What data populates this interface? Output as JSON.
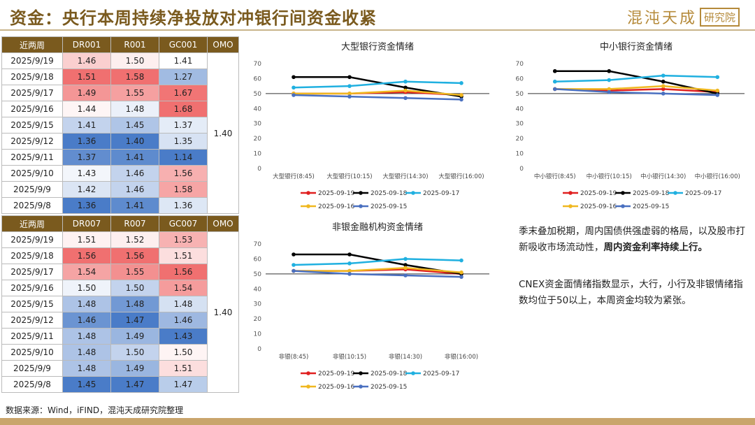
{
  "title": "资金：央行本周持续净投放对冲银行间资金收紧",
  "logo": {
    "brand": "混沌天成",
    "seal": "研究院"
  },
  "colors": {
    "header_bg": "#7a5a1e",
    "red": "#f07070",
    "blue": "#4a7cc8",
    "accent": "#7a5a1e"
  },
  "table1": {
    "headers": [
      "近两周",
      "DR001",
      "R001",
      "GC001",
      "OMO"
    ],
    "omo": "1.40",
    "rows": [
      {
        "date": "2025/9/19",
        "a": "1.46",
        "b": "1.50",
        "c": "1.41"
      },
      {
        "date": "2025/9/18",
        "a": "1.51",
        "b": "1.58",
        "c": "1.27"
      },
      {
        "date": "2025/9/17",
        "a": "1.49",
        "b": "1.55",
        "c": "1.67"
      },
      {
        "date": "2025/9/16",
        "a": "1.44",
        "b": "1.48",
        "c": "1.68"
      },
      {
        "date": "2025/9/15",
        "a": "1.41",
        "b": "1.45",
        "c": "1.37"
      },
      {
        "date": "2025/9/12",
        "a": "1.36",
        "b": "1.40",
        "c": "1.35"
      },
      {
        "date": "2025/9/11",
        "a": "1.37",
        "b": "1.41",
        "c": "1.14"
      },
      {
        "date": "2025/9/10",
        "a": "1.43",
        "b": "1.46",
        "c": "1.56"
      },
      {
        "date": "2025/9/9",
        "a": "1.42",
        "b": "1.46",
        "c": "1.58"
      },
      {
        "date": "2025/9/8",
        "a": "1.36",
        "b": "1.41",
        "c": "1.36"
      }
    ]
  },
  "table2": {
    "headers": [
      "近两周",
      "DR007",
      "R007",
      "GC007",
      "OMO"
    ],
    "omo": "1.40",
    "rows": [
      {
        "date": "2025/9/19",
        "a": "1.51",
        "b": "1.52",
        "c": "1.53"
      },
      {
        "date": "2025/9/18",
        "a": "1.56",
        "b": "1.56",
        "c": "1.51"
      },
      {
        "date": "2025/9/17",
        "a": "1.54",
        "b": "1.55",
        "c": "1.56"
      },
      {
        "date": "2025/9/16",
        "a": "1.50",
        "b": "1.50",
        "c": "1.54"
      },
      {
        "date": "2025/9/15",
        "a": "1.48",
        "b": "1.48",
        "c": "1.48"
      },
      {
        "date": "2025/9/12",
        "a": "1.46",
        "b": "1.47",
        "c": "1.46"
      },
      {
        "date": "2025/9/11",
        "a": "1.48",
        "b": "1.49",
        "c": "1.43"
      },
      {
        "date": "2025/9/10",
        "a": "1.48",
        "b": "1.50",
        "c": "1.50"
      },
      {
        "date": "2025/9/9",
        "a": "1.48",
        "b": "1.49",
        "c": "1.51"
      },
      {
        "date": "2025/9/8",
        "a": "1.45",
        "b": "1.47",
        "c": "1.47"
      }
    ]
  },
  "chart_data": [
    {
      "type": "line",
      "title": "大型银行资金情绪",
      "categories": [
        "大型银行(8:45)",
        "大型银行(10:15)",
        "大型银行(14:30)",
        "大型银行(16:00)"
      ],
      "ylim": [
        0,
        70
      ],
      "yticks": [
        0,
        10,
        20,
        30,
        40,
        50,
        60,
        70
      ],
      "reference_line": 50,
      "series": [
        {
          "name": "2025-09-19",
          "color": "#e02020",
          "values": [
            50,
            50,
            51,
            49
          ]
        },
        {
          "name": "2025-09-18",
          "color": "#000000",
          "values": [
            61,
            61,
            54,
            48
          ]
        },
        {
          "name": "2025-09-17",
          "color": "#20b0e0",
          "values": [
            54,
            55,
            58,
            57
          ]
        },
        {
          "name": "2025-09-16",
          "color": "#f0b820",
          "values": [
            50,
            50,
            52,
            49
          ]
        },
        {
          "name": "2025-09-15",
          "color": "#4a70c0",
          "values": [
            49,
            48,
            47,
            46
          ]
        }
      ]
    },
    {
      "type": "line",
      "title": "中小银行资金情绪",
      "categories": [
        "中小银行(8:45)",
        "中小银行(10:15)",
        "中小银行(14:30)",
        "中小银行(16:00)"
      ],
      "ylim": [
        0,
        70
      ],
      "yticks": [
        0,
        10,
        20,
        30,
        40,
        50,
        60,
        70
      ],
      "reference_line": 50,
      "series": [
        {
          "name": "2025-09-19",
          "color": "#e02020",
          "values": [
            53,
            52,
            53,
            51
          ]
        },
        {
          "name": "2025-09-18",
          "color": "#000000",
          "values": [
            65,
            65,
            58,
            50
          ]
        },
        {
          "name": "2025-09-17",
          "color": "#20b0e0",
          "values": [
            58,
            59,
            62,
            61
          ]
        },
        {
          "name": "2025-09-16",
          "color": "#f0b820",
          "values": [
            53,
            53,
            55,
            52
          ]
        },
        {
          "name": "2025-09-15",
          "color": "#4a70c0",
          "values": [
            53,
            51,
            50,
            49
          ]
        }
      ]
    },
    {
      "type": "line",
      "title": "非银金融机构资金情绪",
      "categories": [
        "非银(8:45)",
        "非银(10:15)",
        "非银(14:30)",
        "非银(16:00)"
      ],
      "ylim": [
        0,
        70
      ],
      "yticks": [
        0,
        10,
        20,
        30,
        40,
        50,
        60,
        70
      ],
      "reference_line": 50,
      "series": [
        {
          "name": "2025-09-19",
          "color": "#e02020",
          "values": [
            52,
            52,
            53,
            50
          ]
        },
        {
          "name": "2025-09-18",
          "color": "#000000",
          "values": [
            63,
            63,
            56,
            50
          ]
        },
        {
          "name": "2025-09-17",
          "color": "#20b0e0",
          "values": [
            56,
            57,
            60,
            59
          ]
        },
        {
          "name": "2025-09-16",
          "color": "#f0b820",
          "values": [
            52,
            52,
            54,
            51
          ]
        },
        {
          "name": "2025-09-15",
          "color": "#4a70c0",
          "values": [
            52,
            50,
            49,
            48
          ]
        }
      ]
    }
  ],
  "text": {
    "p1_a": "季末叠加税期，周内国债供强虚弱的格局，以及股市打新吸收市场流动性，",
    "p1_bold": "周内资金利率持续上行。",
    "p2": "CNEX资金面情绪指数显示，大行，小行及非银情绪指数均位于50以上，本周资金均较为紧张。"
  },
  "source": "数据来源：Wind，iFIND，混沌天成研究院整理"
}
